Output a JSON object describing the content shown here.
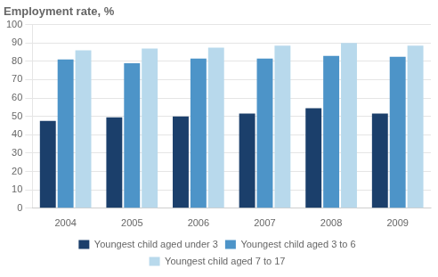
{
  "chart_data": {
    "type": "bar",
    "title": "Employment rate, %",
    "categories": [
      "2004",
      "2005",
      "2006",
      "2007",
      "2008",
      "2009"
    ],
    "series": [
      {
        "name": "Youngest child aged under 3",
        "color": "#1b3f6b",
        "values": [
          47.5,
          49.5,
          50.0,
          51.5,
          54.5,
          51.5
        ]
      },
      {
        "name": "Youngest child aged 3 to 6",
        "color": "#4d94c8",
        "values": [
          81.0,
          79.0,
          81.5,
          81.5,
          83.0,
          82.5
        ]
      },
      {
        "name": "Youngest child aged 7 to 17",
        "color": "#b8d9ec",
        "values": [
          86.0,
          87.0,
          87.5,
          88.5,
          90.0,
          88.5
        ]
      }
    ],
    "ylim": [
      0,
      100
    ],
    "yticks": [
      0,
      10,
      20,
      30,
      40,
      50,
      60,
      70,
      80,
      90,
      100
    ],
    "grid": true,
    "legend": "bottom"
  }
}
